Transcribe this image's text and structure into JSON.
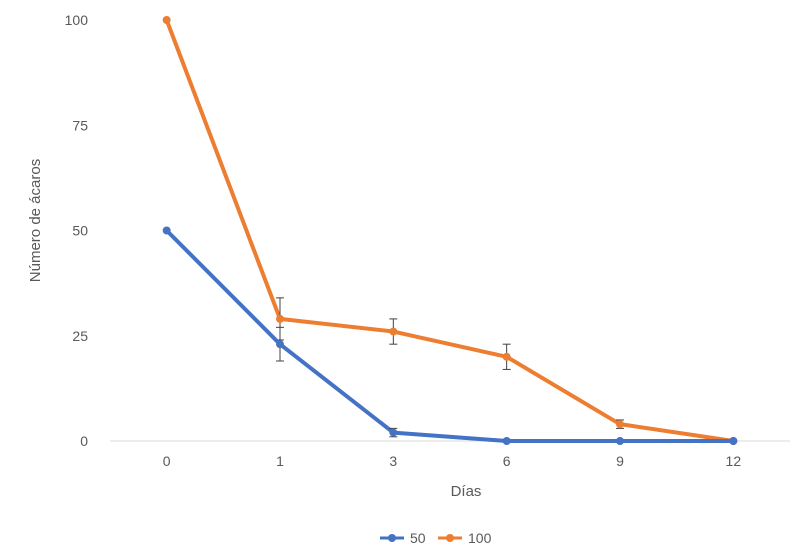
{
  "chart_data": {
    "type": "line",
    "categories": [
      "0",
      "1",
      "3",
      "6",
      "9",
      "12"
    ],
    "xlabel": "Días",
    "ylabel": "Número de ácaros",
    "ylim": [
      0,
      100
    ],
    "yticks": [
      0,
      25,
      50,
      75,
      100
    ],
    "grid": false,
    "legend_position": "bottom",
    "series": [
      {
        "name": "50",
        "color": "#4472C4",
        "values": [
          50,
          23,
          2,
          0,
          0,
          0
        ],
        "errors": [
          0,
          4,
          1,
          0,
          0,
          0
        ]
      },
      {
        "name": "100",
        "color": "#ED7D31",
        "values": [
          100,
          29,
          26,
          20,
          4,
          0
        ],
        "errors": [
          0,
          5,
          3,
          3,
          1,
          0
        ]
      }
    ]
  }
}
